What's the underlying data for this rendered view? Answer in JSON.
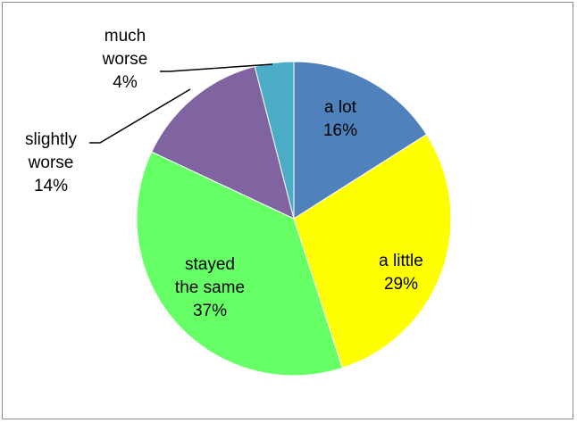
{
  "chart_data": {
    "type": "pie",
    "title": "",
    "slices": [
      {
        "label_lines": [
          "a lot"
        ],
        "value": 16,
        "value_label": "16%",
        "color": "#4F81BD"
      },
      {
        "label_lines": [
          "a little"
        ],
        "value": 29,
        "value_label": "29%",
        "color": "#FFFF00"
      },
      {
        "label_lines": [
          "stayed",
          "the same"
        ],
        "value": 37,
        "value_label": "37%",
        "color": "#66FF66"
      },
      {
        "label_lines": [
          "slightly",
          "worse"
        ],
        "value": 14,
        "value_label": "14%",
        "color": "#8064A2"
      },
      {
        "label_lines": [
          "much",
          "worse"
        ],
        "value": 4,
        "value_label": "4%",
        "color": "#4BACC6"
      }
    ],
    "start_angle": "12 o'clock",
    "direction": "clockwise",
    "legend": "none"
  }
}
